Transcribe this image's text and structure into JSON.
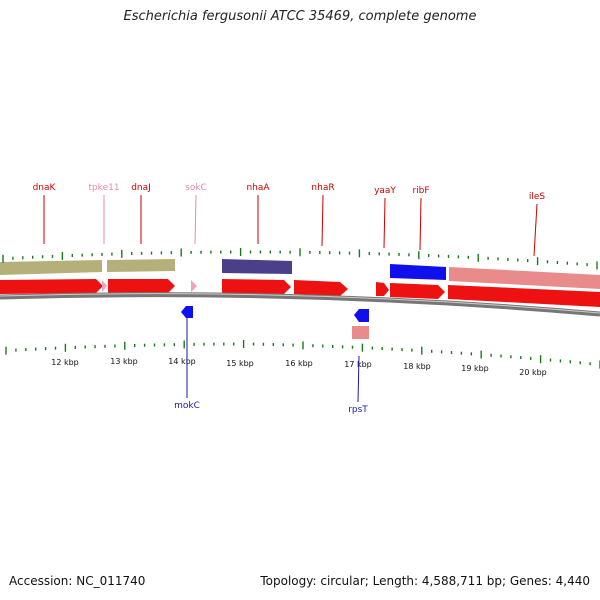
{
  "title": "Escherichia fergusonii ATCC 35469, complete genome",
  "accession": "Accession: NC_011740",
  "summary": "Topology: circular; Length: 4,588,711 bp; Genes: 4,440",
  "colors": {
    "gene_label": "#cc0000",
    "trna_label": "#ee88aa",
    "reverse_label": "#1a1aaa",
    "backbone": "#777777",
    "tick": "#1a7a1a"
  },
  "kbp_ticks": [
    "12 kbp",
    "13 kbp",
    "14 kbp",
    "15 kbp",
    "16 kbp",
    "17 kbp",
    "18 kbp",
    "19 kbp",
    "20 kbp"
  ],
  "gene_labels_top": [
    {
      "name": "dnaK",
      "type": "gene"
    },
    {
      "name": "tpke11",
      "type": "trna"
    },
    {
      "name": "dnaJ",
      "type": "gene"
    },
    {
      "name": "sokC",
      "type": "trna"
    },
    {
      "name": "nhaA",
      "type": "gene"
    },
    {
      "name": "nhaR",
      "type": "gene"
    },
    {
      "name": "yaaY",
      "type": "gene"
    },
    {
      "name": "ribF",
      "type": "gene"
    },
    {
      "name": "ileS",
      "type": "gene"
    }
  ],
  "gene_labels_bottom": [
    {
      "name": "mokC",
      "type": "reverse"
    },
    {
      "name": "rpsT",
      "type": "reverse"
    }
  ]
}
